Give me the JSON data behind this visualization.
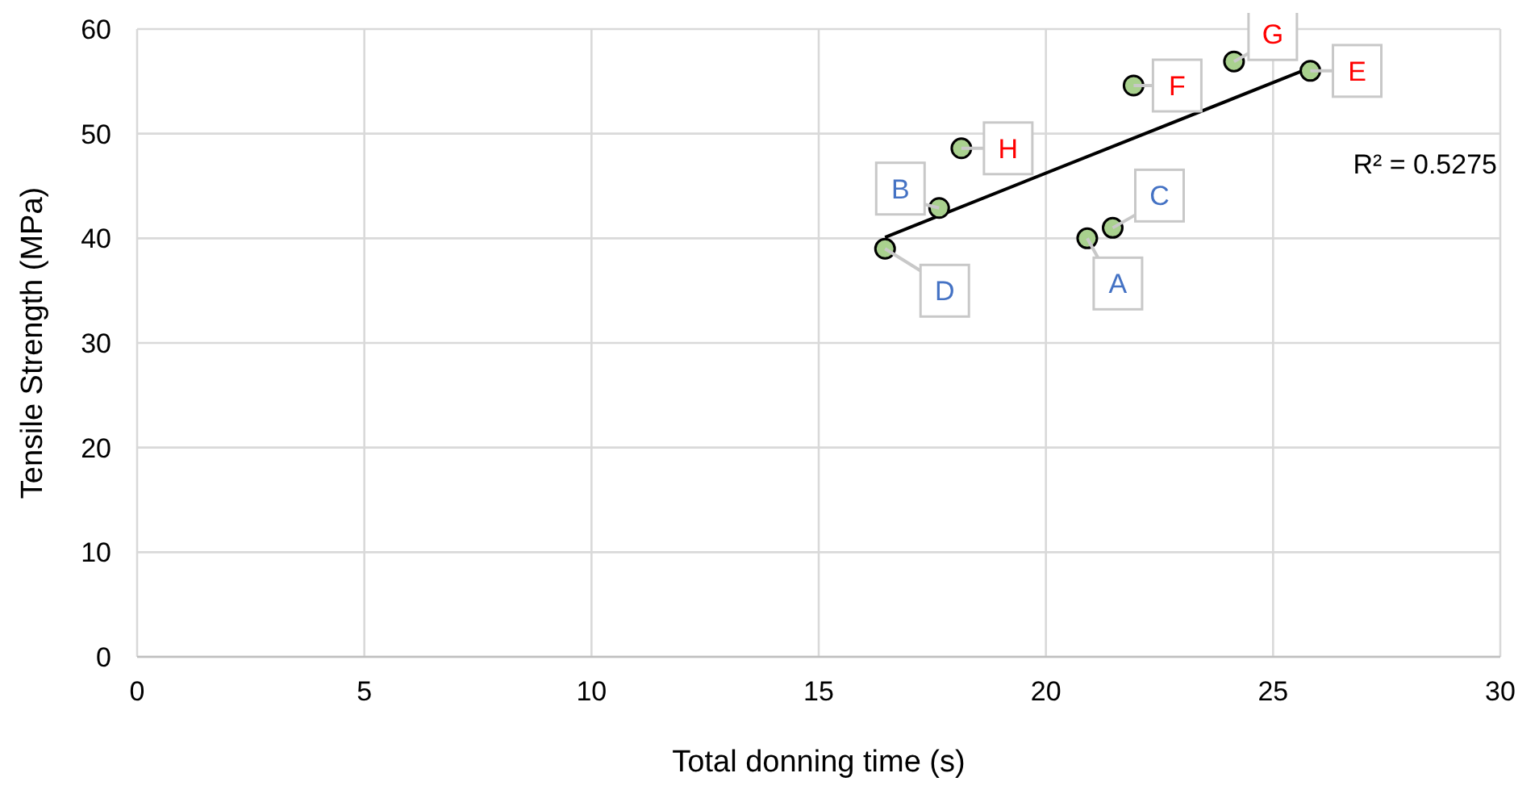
{
  "chart_data": {
    "type": "scatter",
    "xlabel": "Total donning time (s)",
    "ylabel": "Tensile Strength (MPa)",
    "xlim": [
      0,
      30
    ],
    "xticks": [
      0,
      5,
      10,
      15,
      20,
      25,
      30
    ],
    "ylim": [
      0,
      60
    ],
    "yticks": [
      0,
      10,
      20,
      30,
      40,
      50,
      60
    ],
    "grid": true,
    "marker": "circle",
    "annotations": [
      "R² = 0.5275"
    ],
    "series": [
      {
        "color": "#a9d18e",
        "x": [
          20.91,
          17.65,
          21.47,
          16.46
        ],
        "values": [
          40.0,
          42.9,
          41.0,
          39.0
        ],
        "value_labels": [
          "A",
          "B",
          "C",
          "D"
        ]
      },
      {
        "color": "#a9d18e",
        "x": [
          25.82,
          21.93,
          24.14,
          18.14
        ],
        "values": [
          56.0,
          54.6,
          56.9,
          48.6
        ],
        "value_labels": [
          "E",
          "F",
          "G",
          "H"
        ]
      },
      {
        "type": "line",
        "color": "#000000",
        "x": [
          16.46,
          25.82
        ],
        "values": [
          40.1,
          56.3
        ],
        "marker": "none"
      }
    ]
  }
}
